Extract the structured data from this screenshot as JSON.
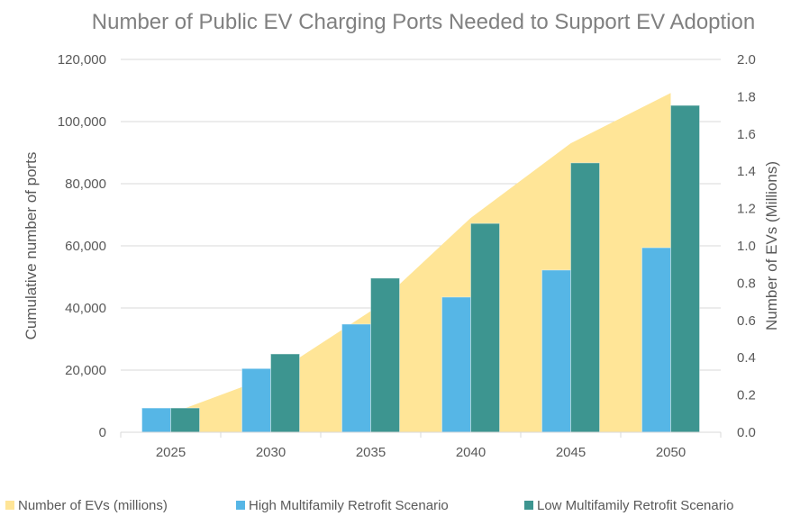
{
  "chart_data": {
    "type": "bar",
    "title": "Number of Public EV Charging Ports Needed to Support EV Adoption",
    "categories": [
      "2025",
      "2030",
      "2035",
      "2040",
      "2045",
      "2050"
    ],
    "ylabel": "Cumulative number of ports",
    "y2label": "Number of EVs (Millions)",
    "ylim": [
      0,
      120000
    ],
    "y2lim": [
      0,
      2.0
    ],
    "yticks": [
      "0",
      "20,000",
      "40,000",
      "60,000",
      "80,000",
      "100,000",
      "120,000"
    ],
    "y2ticks": [
      "0.0",
      "0.2",
      "0.4",
      "0.6",
      "0.8",
      "1.0",
      "1.2",
      "1.4",
      "1.6",
      "1.8",
      "2.0"
    ],
    "grid": true,
    "legend_position": "bottom",
    "area_series": {
      "name": "Number of EVs (millions)",
      "axis": "right",
      "color": "#FFE597",
      "values": [
        0.1,
        0.3,
        0.65,
        1.15,
        1.55,
        1.82
      ]
    },
    "series": [
      {
        "name": "High Multifamily Retrofit Scenario",
        "color": "#56B6E6",
        "values": [
          7800,
          20500,
          34800,
          43500,
          52200,
          59400
        ]
      },
      {
        "name": "Low Multifamily Retrofit Scenario",
        "color": "#3D9590",
        "values": [
          7800,
          25200,
          49600,
          67200,
          86700,
          105200
        ]
      }
    ]
  }
}
